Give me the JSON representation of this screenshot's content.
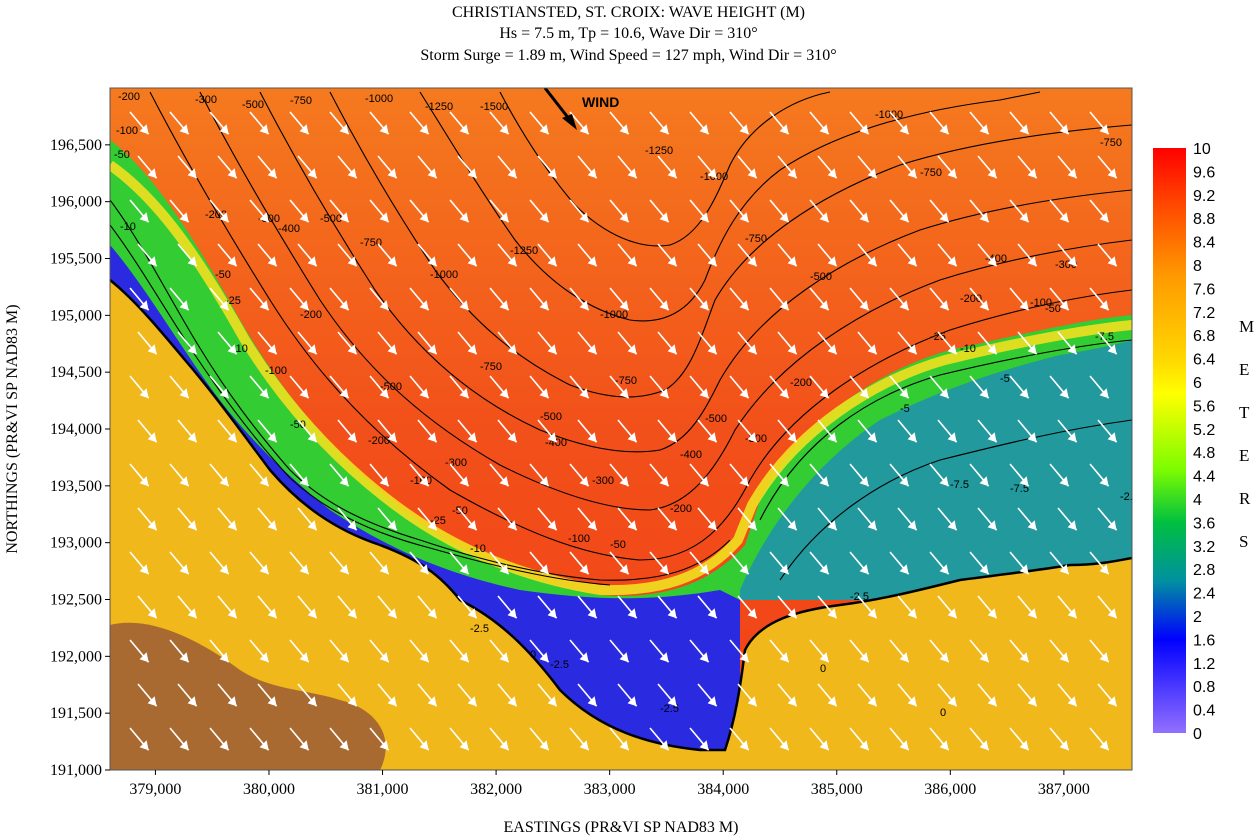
{
  "title": {
    "line1": "CHRISTIANSTED, ST. CROIX: WAVE HEIGHT (M)",
    "line2": "Hs = 7.5 m, Tp = 10.6, Wave Dir = 310°",
    "line3": "Storm Surge = 1.89 m, Wind Speed = 127 mph, Wind Dir = 310°"
  },
  "axes": {
    "xlabel": "EASTINGS (PR&VI SP NAD83 M)",
    "ylabel": "NORTHINGS (PR&VI SP NAD83 M)",
    "xrange": [
      378600,
      387600
    ],
    "yrange": [
      191000,
      197000
    ],
    "xticks": [
      "379,000",
      "380,000",
      "381,000",
      "382,000",
      "383,000",
      "384,000",
      "385,000",
      "386,000",
      "387,000"
    ],
    "xtick_values": [
      379000,
      380000,
      381000,
      382000,
      383000,
      384000,
      385000,
      386000,
      387000
    ],
    "yticks": [
      "196,500",
      "196,000",
      "195,500",
      "195,000",
      "194,500",
      "194,000",
      "193,500",
      "193,000",
      "192,500",
      "192,000",
      "191,500",
      "191,000"
    ],
    "ytick_values": [
      196500,
      196000,
      195500,
      195000,
      194500,
      194000,
      193500,
      193000,
      192500,
      192000,
      191500,
      191000
    ]
  },
  "wind_label": "WIND",
  "colorbar": {
    "units_letters": [
      "M",
      "E",
      "T",
      "E",
      "R",
      "S"
    ],
    "labels": [
      "10",
      "9.6",
      "9.2",
      "8.8",
      "8.4",
      "8",
      "7.6",
      "7.2",
      "6.8",
      "6.4",
      "6",
      "5.6",
      "5.2",
      "4.8",
      "4.4",
      "4",
      "3.6",
      "3.2",
      "2.8",
      "2.4",
      "2",
      "1.6",
      "1.2",
      "0.8",
      "0.4",
      "0"
    ],
    "colors": [
      "#ff0000",
      "#ff4a00",
      "#ff8c00",
      "#ffd700",
      "#ffff00",
      "#7cfc00",
      "#00c040",
      "#007090",
      "#0000ff",
      "#9370ff"
    ]
  },
  "map_colors": {
    "deep_water": "#f47a1e",
    "deep_water_red": "#f24a16",
    "nearshore_green": "#33cc33",
    "nearshore_yellow": "#f0e020",
    "shallow_blue": "#2a2ae0",
    "shallow_violet": "#7d6af0",
    "land": "#f0b81a",
    "terrain": "#a86a30"
  },
  "contour_labels": [
    "-200",
    "-300",
    "-100",
    "-500",
    "-750",
    "-1000",
    "-1250",
    "-1500",
    "-50",
    "-25",
    "-10",
    "-400",
    "-7.5",
    "-5",
    "-2.5",
    "0"
  ]
}
